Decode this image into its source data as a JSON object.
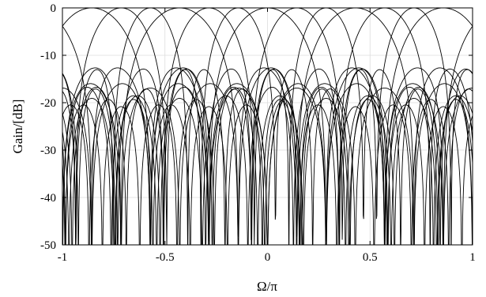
{
  "chart_data": {
    "type": "line",
    "title": "",
    "xlabel": "Ω/π",
    "ylabel": "Gain/[dB]",
    "xlim": [
      -1,
      1
    ],
    "ylim": [
      -50,
      0
    ],
    "x_ticks": [
      -1,
      -0.5,
      0,
      0.5,
      1
    ],
    "x_tick_labels": [
      "-1",
      "-0.5",
      "0",
      "0.5",
      "1"
    ],
    "y_ticks": [
      0,
      -10,
      -20,
      -30,
      -40,
      -50
    ],
    "y_tick_labels": [
      "0",
      "-10",
      "-20",
      "-30",
      "-40",
      "-50"
    ],
    "grid": true,
    "legend": "none",
    "description_data": {
      "main_lobe_centers": [
        -0.857,
        -0.714,
        -0.571,
        -0.429,
        -0.286,
        -0.143,
        0,
        0.143,
        0.286,
        0.429,
        0.571,
        0.714,
        0.857
      ],
      "main_lobe_peak_db": 0,
      "first_sidelobe_db": -13.3,
      "series_count": 13
    },
    "colors": {
      "line": "#000000",
      "grid": "#dcdcdc",
      "axis": "#000000",
      "background": "#ffffff"
    }
  }
}
